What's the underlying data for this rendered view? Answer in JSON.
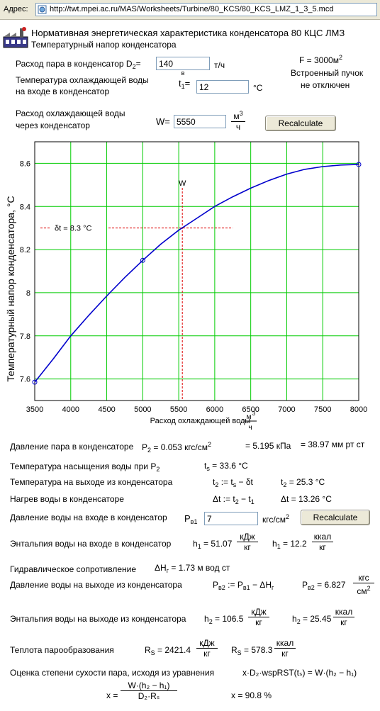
{
  "address_bar": {
    "label": "Адрес:",
    "url": "http://twt.mpei.ac.ru/MAS/Worksheets/Turbine/80_KCS/80_KCS_LMZ_1_3_5.mcd"
  },
  "header": {
    "title": "Нормативная энергетическая характеристика конденсатора 80 КЦС ЛМЗ",
    "subtitle": "Температурный напор конденсатора"
  },
  "inputs": {
    "steam_flow": {
      "label": "Расход пара в конденсатор D",
      "sub": "2",
      "eq": "=",
      "value": "140",
      "unit": "т/ч"
    },
    "water_temp": {
      "label1": "Температура охлаждающей воды",
      "label2": "на входе в конденсатор",
      "sym": "t",
      "sup": "в",
      "sub": "1",
      "eq": "=",
      "value": "12",
      "unit": "°C"
    },
    "water_flow": {
      "label1": "Расход охлаждающей воды",
      "label2": "через конденсатор",
      "sym": "W",
      "eq": "=",
      "value": "5550",
      "unit_num": "м",
      "unit_sup": "3",
      "unit_den": "ч"
    },
    "recalc1": "Recalculate"
  },
  "info": {
    "area": "F = 3000м",
    "area_sup": "2",
    "line2": "Встроенный пучок",
    "line3": "не отключен"
  },
  "chart_data": {
    "type": "line",
    "title": "",
    "xlabel": "Расход охлаждающей воды",
    "xlabel_unit_num": "м",
    "xlabel_unit_sup": "3",
    "xlabel_unit_den": "ч",
    "ylabel": "Температурный напор конденсатора, °C",
    "xlim": [
      3500,
      8000
    ],
    "ylim": [
      7.5,
      8.7
    ],
    "xticks": [
      3500,
      4000,
      4500,
      5000,
      5500,
      6000,
      6500,
      7000,
      7500,
      8000
    ],
    "yticks": [
      7.6,
      7.8,
      8,
      8.2,
      8.4,
      8.6
    ],
    "ytick_labels": [
      "7.6",
      "7.8",
      "8",
      "8.2",
      "8.4",
      "8.6"
    ],
    "series": [
      {
        "x": [
          3500,
          3750,
          4000,
          4250,
          4500,
          4750,
          5000,
          5250,
          5500,
          5750,
          6000,
          6250,
          6500,
          6750,
          7000,
          7250,
          7500,
          7750,
          8000
        ],
        "values": [
          7.585,
          7.69,
          7.8,
          7.895,
          7.985,
          8.07,
          8.15,
          8.225,
          8.29,
          8.345,
          8.4,
          8.445,
          8.485,
          8.52,
          8.55,
          8.572,
          8.585,
          8.592,
          8.595
        ]
      }
    ],
    "markers": [
      {
        "x": 3500,
        "y": 7.585
      },
      {
        "x": 5000,
        "y": 8.15
      },
      {
        "x": 8000,
        "y": 8.595
      }
    ],
    "vline": {
      "x": 5550,
      "label": "W"
    },
    "hline": {
      "y": 8.3,
      "label": "δt = 8.3 °C"
    },
    "line_color": "#0000cc",
    "grid_color": "#00cc00",
    "ref_color": "#dd0000",
    "grid": true
  },
  "results": {
    "pressure": {
      "label": "Давление пара в конденсаторе",
      "p2": "P",
      "p2sub": "2",
      "p2val": " = 0.053 кгс/см",
      "p2sup": "2",
      "kpa": "= 5.195 кПа",
      "mm": "= 38.97 мм рт ст"
    },
    "saturation": {
      "label": "Температура насыщения воды при P",
      "labelsub": "2",
      "val": "t",
      "valsub": "s",
      "valrest": " = 33.6 °C"
    },
    "outlet_temp": {
      "label": "Температура на выходе из конденсатора",
      "f1": "t",
      "f1sub": "2",
      "f1rest": " := t",
      "f1sub2": "s",
      "f1rest2": " − δt",
      "v": "t",
      "vsub": "2",
      "vrest": " = 25.3 °C"
    },
    "heating": {
      "label": "Нагрев воды в конденсаторе",
      "f1": "Δt := t",
      "f1sub": "2",
      "f1rest": " − t",
      "f1sub2": "1",
      "v": "Δt = 13.26 °C"
    },
    "inlet_pressure": {
      "label": "Давление воды на входе в конденсатор",
      "sym": "P",
      "symsub": "в1",
      "value": "7",
      "unit": "кгс/см",
      "unit_sup": "2",
      "button": "Recalculate"
    },
    "enthalpy1": {
      "label": "Энтальпия воды на входе в конденсатор",
      "h": "h",
      "hsub": "1",
      "v1": " = 51.07",
      "u1num": "кДж",
      "u1den": "кг",
      "v2": " = 12.2",
      "u2num": "ккал",
      "u2den": "кг"
    },
    "hydraulic": {
      "label": "Гидравлическое сопротивление",
      "v": "ΔH",
      "vsub": "г",
      "vrest": " = 1.73 м вод ст"
    },
    "outlet_pressure": {
      "label": "Давление воды на выходе из конденсатора",
      "f": "P",
      "fsub": "в2",
      "frest": " := P",
      "fsub2": "в1",
      "frest2": " − ΔH",
      "fsub3": "г",
      "v": "P",
      "vsub": "в2",
      "vrest": " = 6.827",
      "unum": "кгс",
      "uden": "см",
      "uden_sup": "2"
    },
    "enthalpy2": {
      "label": "Энтальпия воды на выходе из конденсатора",
      "h": "h",
      "hsub": "2",
      "v1": " = 106.5",
      "u1num": "кДж",
      "u1den": "кг",
      "v2": " = 25.45",
      "u2num": "ккал",
      "u2den": "кг"
    },
    "vaporization": {
      "label": "Теплота парообразования",
      "r": "R",
      "rsub": "S",
      "v1": " = 2421.4",
      "u1num": "кДж",
      "u1den": "кг",
      "v2": " = 578.3",
      "u2num": "ккал",
      "u2den": "кг"
    },
    "dryness": {
      "label": "Оценка степени сухости пара, исходя из уравнения",
      "eq": "x·D₂·wspRST(tₛ) = W·(h₂ − h₁)",
      "xeq": "x =",
      "num": "W·(h₂ − h₁)",
      "den": "D₂·Rₛ",
      "result": "x = 90.8 %"
    }
  }
}
